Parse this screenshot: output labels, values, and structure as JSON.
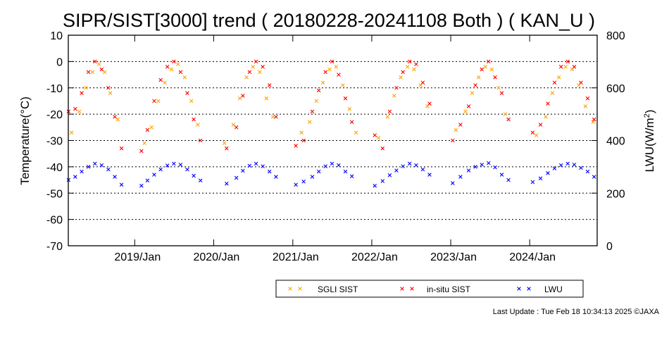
{
  "chart_data": {
    "type": "scatter",
    "title": "SIPR/SIST[3000] trend ( 20180228-20241108 Both ) ( KAN_U )",
    "ylabel_left": "Temperature(°C)",
    "ylabel_right_prefix": "LWU(W/m",
    "ylabel_right_sup": "2",
    "ylabel_right_suffix": ")",
    "x_range": [
      "2018-02-28",
      "2024-11-08"
    ],
    "x_ticks": [
      "2019/Jan",
      "2020/Jan",
      "2021/Jan",
      "2022/Jan",
      "2023/Jan",
      "2024/Jan"
    ],
    "ylim_left": [
      -70,
      10
    ],
    "yticks_left": [
      "10",
      "0",
      "-10",
      "-20",
      "-30",
      "-40",
      "-50",
      "-60",
      "-70"
    ],
    "ylim_right": [
      0,
      800
    ],
    "yticks_right": [
      "800",
      "600",
      "400",
      "200",
      "0"
    ],
    "grid": "horizontal dotted",
    "legend_placement": "bottom-right",
    "series": [
      {
        "name": "SGLI SIST",
        "color": "#ffa500",
        "marker": "x",
        "axis": "left",
        "points": [
          [
            "2018-03-15",
            -27
          ],
          [
            "2018-04-20",
            -19
          ],
          [
            "2018-05-20",
            -10
          ],
          [
            "2018-06-20",
            -4
          ],
          [
            "2018-07-20",
            -1
          ],
          [
            "2018-08-15",
            -4
          ],
          [
            "2018-09-10",
            -12
          ],
          [
            "2018-10-15",
            -22
          ],
          [
            "2019-02-15",
            -31
          ],
          [
            "2019-03-20",
            -25
          ],
          [
            "2019-04-20",
            -15
          ],
          [
            "2019-05-20",
            -8
          ],
          [
            "2019-06-20",
            -3
          ],
          [
            "2019-07-20",
            -1
          ],
          [
            "2019-08-20",
            -6
          ],
          [
            "2019-09-20",
            -15
          ],
          [
            "2019-10-20",
            -24
          ],
          [
            "2020-02-20",
            -31
          ],
          [
            "2020-04-01",
            -24
          ],
          [
            "2020-05-01",
            -14
          ],
          [
            "2020-06-01",
            -6
          ],
          [
            "2020-07-01",
            -2
          ],
          [
            "2020-08-01",
            -4
          ],
          [
            "2020-09-01",
            -14
          ],
          [
            "2020-10-01",
            -21
          ],
          [
            "2021-02-10",
            -27
          ],
          [
            "2021-03-20",
            -23
          ],
          [
            "2021-04-20",
            -15
          ],
          [
            "2021-05-20",
            -8
          ],
          [
            "2021-06-20",
            -3
          ],
          [
            "2021-07-20",
            -2
          ],
          [
            "2021-08-20",
            -9
          ],
          [
            "2021-09-20",
            -18
          ],
          [
            "2021-10-20",
            -27
          ],
          [
            "2022-02-01",
            -29
          ],
          [
            "2022-03-15",
            -21
          ],
          [
            "2022-04-15",
            -13
          ],
          [
            "2022-05-15",
            -6
          ],
          [
            "2022-06-15",
            -2
          ],
          [
            "2022-07-15",
            -3
          ],
          [
            "2022-08-15",
            -9
          ],
          [
            "2022-09-15",
            -17
          ],
          [
            "2023-01-25",
            -26
          ],
          [
            "2023-03-10",
            -19
          ],
          [
            "2023-04-10",
            -12
          ],
          [
            "2023-05-10",
            -6
          ],
          [
            "2023-06-10",
            -2
          ],
          [
            "2023-07-10",
            -3
          ],
          [
            "2023-08-10",
            -10
          ],
          [
            "2023-09-10",
            -20
          ],
          [
            "2024-02-01",
            -28
          ],
          [
            "2024-03-15",
            -21
          ],
          [
            "2024-04-15",
            -12
          ],
          [
            "2024-05-15",
            -6
          ],
          [
            "2024-06-15",
            -2
          ],
          [
            "2024-07-15",
            -3
          ],
          [
            "2024-08-15",
            -9
          ],
          [
            "2024-09-15",
            -17
          ],
          [
            "2024-10-20",
            -23
          ]
        ]
      },
      {
        "name": "in-situ SIST",
        "color": "#ff0000",
        "marker": "x",
        "axis": "left",
        "points": [
          [
            "2018-03-01",
            -19
          ],
          [
            "2018-04-01",
            -18
          ],
          [
            "2018-05-01",
            -12
          ],
          [
            "2018-06-01",
            -4
          ],
          [
            "2018-07-01",
            0
          ],
          [
            "2018-08-01",
            -3
          ],
          [
            "2018-09-01",
            -10
          ],
          [
            "2018-10-01",
            -21
          ],
          [
            "2018-11-01",
            -33
          ],
          [
            "2019-02-01",
            -34
          ],
          [
            "2019-03-01",
            -26
          ],
          [
            "2019-04-01",
            -15
          ],
          [
            "2019-05-01",
            -7
          ],
          [
            "2019-06-01",
            -2
          ],
          [
            "2019-07-01",
            0
          ],
          [
            "2019-08-01",
            -4
          ],
          [
            "2019-09-01",
            -12
          ],
          [
            "2019-10-01",
            -22
          ],
          [
            "2019-11-01",
            -30
          ],
          [
            "2020-03-01",
            -33
          ],
          [
            "2020-04-15",
            -25
          ],
          [
            "2020-05-15",
            -13
          ],
          [
            "2020-06-15",
            -4
          ],
          [
            "2020-07-15",
            0
          ],
          [
            "2020-08-15",
            -2
          ],
          [
            "2020-09-15",
            -9
          ],
          [
            "2020-10-15",
            -21
          ],
          [
            "2021-01-15",
            -32
          ],
          [
            "2021-02-20",
            -30
          ],
          [
            "2021-04-01",
            -19
          ],
          [
            "2021-05-01",
            -11
          ],
          [
            "2021-06-01",
            -4
          ],
          [
            "2021-07-01",
            0
          ],
          [
            "2021-08-01",
            -5
          ],
          [
            "2021-09-01",
            -14
          ],
          [
            "2021-10-01",
            -23
          ],
          [
            "2022-01-15",
            -28
          ],
          [
            "2022-02-20",
            -33
          ],
          [
            "2022-03-25",
            -19
          ],
          [
            "2022-04-25",
            -10
          ],
          [
            "2022-05-25",
            -4
          ],
          [
            "2022-06-25",
            0
          ],
          [
            "2022-07-25",
            -1
          ],
          [
            "2022-08-25",
            -8
          ],
          [
            "2022-09-25",
            -16
          ],
          [
            "2023-01-10",
            -30
          ],
          [
            "2023-02-15",
            -24
          ],
          [
            "2023-03-25",
            -17
          ],
          [
            "2023-04-25",
            -9
          ],
          [
            "2023-05-25",
            -3
          ],
          [
            "2023-06-25",
            0
          ],
          [
            "2023-07-25",
            -6
          ],
          [
            "2023-08-25",
            -12
          ],
          [
            "2023-09-25",
            -22
          ],
          [
            "2024-01-15",
            -27
          ],
          [
            "2024-02-20",
            -24
          ],
          [
            "2024-03-25",
            -16
          ],
          [
            "2024-04-25",
            -8
          ],
          [
            "2024-05-25",
            -2
          ],
          [
            "2024-06-25",
            0
          ],
          [
            "2024-07-25",
            -2
          ],
          [
            "2024-08-25",
            -8
          ],
          [
            "2024-09-25",
            -14
          ],
          [
            "2024-10-25",
            -22
          ]
        ]
      },
      {
        "name": "LWU",
        "color": "#0000ff",
        "marker": "x",
        "axis": "right",
        "points": [
          [
            "2018-03-01",
            250
          ],
          [
            "2018-04-01",
            262
          ],
          [
            "2018-05-01",
            282
          ],
          [
            "2018-06-01",
            300
          ],
          [
            "2018-07-01",
            312
          ],
          [
            "2018-08-01",
            306
          ],
          [
            "2018-09-01",
            290
          ],
          [
            "2018-10-01",
            262
          ],
          [
            "2018-11-01",
            232
          ],
          [
            "2019-02-01",
            228
          ],
          [
            "2019-03-01",
            248
          ],
          [
            "2019-04-01",
            270
          ],
          [
            "2019-05-01",
            290
          ],
          [
            "2019-06-01",
            305
          ],
          [
            "2019-07-01",
            312
          ],
          [
            "2019-08-01",
            308
          ],
          [
            "2019-09-01",
            290
          ],
          [
            "2019-10-01",
            266
          ],
          [
            "2019-11-01",
            248
          ],
          [
            "2020-03-01",
            236
          ],
          [
            "2020-04-15",
            258
          ],
          [
            "2020-05-15",
            285
          ],
          [
            "2020-06-15",
            304
          ],
          [
            "2020-07-15",
            312
          ],
          [
            "2020-08-15",
            302
          ],
          [
            "2020-09-15",
            282
          ],
          [
            "2020-10-15",
            262
          ],
          [
            "2021-01-15",
            232
          ],
          [
            "2021-02-20",
            244
          ],
          [
            "2021-04-01",
            262
          ],
          [
            "2021-05-01",
            282
          ],
          [
            "2021-06-01",
            302
          ],
          [
            "2021-07-01",
            312
          ],
          [
            "2021-08-01",
            306
          ],
          [
            "2021-09-01",
            282
          ],
          [
            "2021-10-01",
            264
          ],
          [
            "2022-01-15",
            228
          ],
          [
            "2022-02-20",
            246
          ],
          [
            "2022-03-25",
            268
          ],
          [
            "2022-04-25",
            286
          ],
          [
            "2022-05-25",
            302
          ],
          [
            "2022-06-25",
            312
          ],
          [
            "2022-07-25",
            306
          ],
          [
            "2022-08-25",
            290
          ],
          [
            "2022-09-25",
            270
          ],
          [
            "2023-01-10",
            238
          ],
          [
            "2023-02-15",
            262
          ],
          [
            "2023-03-25",
            286
          ],
          [
            "2023-04-25",
            300
          ],
          [
            "2023-05-25",
            308
          ],
          [
            "2023-06-25",
            314
          ],
          [
            "2023-07-25",
            298
          ],
          [
            "2023-08-25",
            270
          ],
          [
            "2023-09-25",
            250
          ],
          [
            "2024-01-15",
            242
          ],
          [
            "2024-02-20",
            256
          ],
          [
            "2024-03-25",
            276
          ],
          [
            "2024-04-25",
            294
          ],
          [
            "2024-05-25",
            306
          ],
          [
            "2024-06-25",
            312
          ],
          [
            "2024-07-25",
            308
          ],
          [
            "2024-08-25",
            296
          ],
          [
            "2024-09-25",
            282
          ],
          [
            "2024-10-25",
            262
          ]
        ]
      }
    ]
  },
  "footer": {
    "last_update": "Last Update : Tue Feb 18 10:34:13 2025  ©JAXA"
  }
}
